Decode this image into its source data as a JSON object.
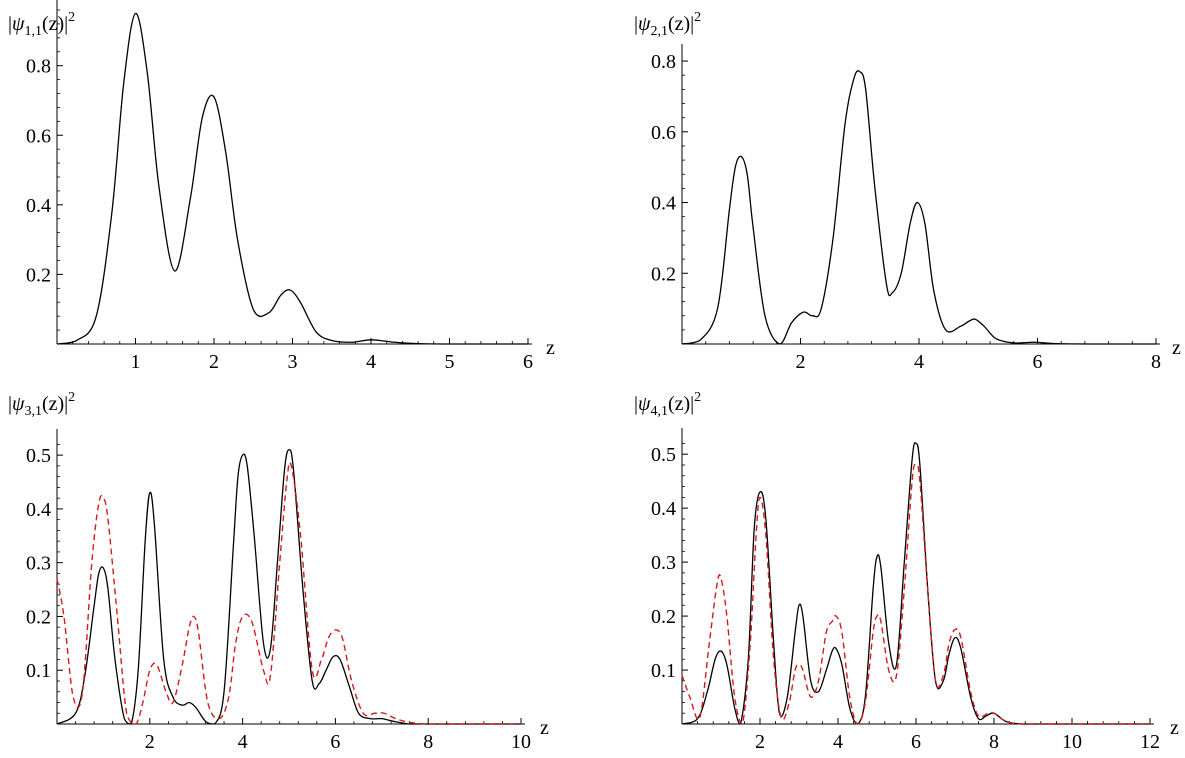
{
  "chart_data": [
    {
      "type": "line",
      "ylabel": {
        "pre": "|",
        "sym": "ψ",
        "sub": "1,1",
        "mid": "(z)|",
        "sup": "2"
      },
      "xlabel": "z",
      "xlim": [
        0,
        6
      ],
      "ylim": [
        0,
        0.96
      ],
      "xticks": [
        1,
        2,
        3,
        4,
        5,
        6
      ],
      "yticks": [
        0.2,
        0.4,
        0.6,
        0.8
      ],
      "ytick_labels": [
        "0.2",
        "0.4",
        "0.6",
        "0.8"
      ],
      "series": [
        {
          "style": "solid",
          "color": "#000000",
          "x": [
            0,
            0.25,
            0.5,
            0.7,
            0.85,
            1.0,
            1.15,
            1.3,
            1.5,
            1.7,
            1.85,
            2.0,
            2.15,
            2.3,
            2.5,
            2.7,
            2.85,
            2.97,
            3.1,
            3.3,
            3.5,
            3.75,
            4.0,
            4.3,
            4.6,
            5.0,
            5.5,
            6.0
          ],
          "y": [
            0.0,
            0.01,
            0.08,
            0.38,
            0.75,
            0.95,
            0.78,
            0.45,
            0.21,
            0.42,
            0.65,
            0.71,
            0.55,
            0.3,
            0.1,
            0.09,
            0.14,
            0.155,
            0.12,
            0.035,
            0.01,
            0.005,
            0.012,
            0.005,
            0.001,
            0.0,
            0.0,
            0.0
          ]
        }
      ]
    },
    {
      "type": "line",
      "ylabel": {
        "pre": "|",
        "sym": "ψ",
        "sub": "2,1",
        "mid": "(z)|",
        "sup": "2"
      },
      "xlabel": "z",
      "xlim": [
        0,
        8
      ],
      "ylim": [
        0,
        0.82
      ],
      "xticks": [
        2,
        4,
        6,
        8
      ],
      "yticks": [
        0.2,
        0.4,
        0.6,
        0.8
      ],
      "ytick_labels": [
        "0.2",
        "0.4",
        "0.6",
        "0.8"
      ],
      "series": [
        {
          "style": "solid",
          "color": "#000000",
          "x": [
            0,
            0.3,
            0.6,
            0.8,
            0.9,
            1.0,
            1.1,
            1.2,
            1.4,
            1.65,
            1.85,
            2.05,
            2.2,
            2.35,
            2.55,
            2.75,
            2.9,
            3.0,
            3.1,
            3.25,
            3.45,
            3.55,
            3.7,
            3.85,
            3.97,
            4.1,
            4.25,
            4.45,
            4.7,
            4.85,
            4.95,
            5.1,
            5.3,
            5.6,
            5.95,
            6.3,
            7.0,
            8.0
          ],
          "y": [
            0.0,
            0.01,
            0.1,
            0.38,
            0.5,
            0.53,
            0.48,
            0.33,
            0.08,
            0.0,
            0.06,
            0.09,
            0.08,
            0.1,
            0.3,
            0.62,
            0.75,
            0.77,
            0.72,
            0.45,
            0.17,
            0.145,
            0.2,
            0.34,
            0.4,
            0.34,
            0.15,
            0.04,
            0.05,
            0.065,
            0.07,
            0.05,
            0.015,
            0.003,
            0.005,
            0.001,
            0.0,
            0.0
          ]
        }
      ]
    },
    {
      "type": "line",
      "ylabel": {
        "pre": "|",
        "sym": "ψ",
        "sub": "3,1",
        "mid": "(z)|",
        "sup": "2"
      },
      "xlabel": "z",
      "xlim": [
        0,
        10
      ],
      "ylim": [
        0,
        0.53
      ],
      "xticks": [
        2,
        4,
        6,
        8,
        10
      ],
      "yticks": [
        0.1,
        0.2,
        0.3,
        0.4,
        0.5
      ],
      "ytick_labels": [
        "0.1",
        "0.2",
        "0.3",
        "0.4",
        "0.5"
      ],
      "series": [
        {
          "style": "solid",
          "color": "#000000",
          "x": [
            0,
            0.4,
            0.6,
            0.8,
            0.9,
            1.0,
            1.1,
            1.25,
            1.45,
            1.6,
            1.75,
            1.9,
            2.0,
            2.1,
            2.3,
            2.5,
            2.7,
            2.85,
            3.0,
            3.2,
            3.4,
            3.6,
            3.8,
            3.9,
            4.0,
            4.1,
            4.25,
            4.45,
            4.6,
            4.75,
            4.9,
            5.0,
            5.1,
            5.3,
            5.5,
            5.65,
            5.8,
            5.95,
            6.1,
            6.3,
            6.5,
            6.75,
            7.0,
            7.25,
            7.6,
            8.0,
            9.0,
            10.0
          ],
          "y": [
            0.0,
            0.02,
            0.09,
            0.22,
            0.28,
            0.29,
            0.25,
            0.12,
            0.01,
            0.0,
            0.1,
            0.34,
            0.43,
            0.37,
            0.12,
            0.05,
            0.035,
            0.04,
            0.03,
            0.005,
            0.0,
            0.06,
            0.33,
            0.46,
            0.5,
            0.48,
            0.35,
            0.15,
            0.14,
            0.3,
            0.47,
            0.51,
            0.47,
            0.25,
            0.08,
            0.075,
            0.1,
            0.125,
            0.12,
            0.07,
            0.02,
            0.01,
            0.01,
            0.005,
            0.0,
            0.0,
            0.0,
            0.0
          ]
        },
        {
          "style": "dashed",
          "color": "#d61a1a",
          "x": [
            0,
            0.15,
            0.35,
            0.55,
            0.75,
            0.9,
            1.0,
            1.1,
            1.3,
            1.5,
            1.7,
            1.85,
            2.0,
            2.15,
            2.35,
            2.5,
            2.7,
            2.85,
            2.95,
            3.05,
            3.25,
            3.5,
            3.7,
            3.85,
            4.0,
            4.2,
            4.45,
            4.6,
            4.8,
            4.95,
            5.05,
            5.25,
            5.5,
            5.7,
            5.85,
            6.0,
            6.15,
            6.35,
            6.6,
            6.85,
            7.05,
            7.3,
            7.6,
            8.0,
            9.0,
            10.0
          ],
          "y": [
            0.27,
            0.2,
            0.05,
            0.06,
            0.3,
            0.41,
            0.42,
            0.38,
            0.2,
            0.02,
            0.0,
            0.04,
            0.1,
            0.11,
            0.06,
            0.04,
            0.11,
            0.18,
            0.2,
            0.17,
            0.04,
            0.01,
            0.05,
            0.15,
            0.2,
            0.19,
            0.1,
            0.09,
            0.3,
            0.45,
            0.48,
            0.35,
            0.1,
            0.12,
            0.16,
            0.175,
            0.16,
            0.08,
            0.02,
            0.02,
            0.02,
            0.01,
            0.003,
            0.0,
            0.0,
            0.0
          ]
        }
      ]
    },
    {
      "type": "line",
      "ylabel": {
        "pre": "|",
        "sym": "ψ",
        "sub": "4,1",
        "mid": "(z)|",
        "sup": "2"
      },
      "xlabel": "z",
      "xlim": [
        0,
        12
      ],
      "ylim": [
        0,
        0.53
      ],
      "xticks": [
        2,
        4,
        6,
        8,
        10,
        12
      ],
      "yticks": [
        0.1,
        0.2,
        0.3,
        0.4,
        0.5
      ],
      "ytick_labels": [
        "0.1",
        "0.2",
        "0.3",
        "0.4",
        "0.5"
      ],
      "series": [
        {
          "style": "solid",
          "color": "#000000",
          "x": [
            0,
            0.4,
            0.65,
            0.85,
            1.0,
            1.15,
            1.35,
            1.5,
            1.7,
            1.85,
            2.0,
            2.15,
            2.35,
            2.5,
            2.7,
            2.9,
            3.0,
            3.1,
            3.3,
            3.5,
            3.7,
            3.85,
            3.95,
            4.1,
            4.3,
            4.5,
            4.7,
            4.9,
            5.0,
            5.1,
            5.3,
            5.5,
            5.7,
            5.9,
            6.0,
            6.1,
            6.3,
            6.5,
            6.7,
            6.85,
            7.0,
            7.15,
            7.4,
            7.6,
            7.8,
            8.0,
            8.3,
            8.7,
            9.5,
            12.0
          ],
          "y": [
            0.0,
            0.01,
            0.06,
            0.12,
            0.135,
            0.11,
            0.03,
            0.0,
            0.12,
            0.36,
            0.43,
            0.38,
            0.15,
            0.02,
            0.05,
            0.17,
            0.22,
            0.2,
            0.08,
            0.06,
            0.1,
            0.135,
            0.14,
            0.11,
            0.03,
            0.0,
            0.05,
            0.25,
            0.31,
            0.29,
            0.15,
            0.11,
            0.3,
            0.49,
            0.52,
            0.48,
            0.25,
            0.08,
            0.08,
            0.13,
            0.16,
            0.14,
            0.05,
            0.01,
            0.015,
            0.02,
            0.005,
            0.0,
            0.0,
            0.0
          ]
        },
        {
          "style": "dashed",
          "color": "#d61a1a",
          "x": [
            0,
            0.2,
            0.45,
            0.7,
            0.9,
            1.0,
            1.15,
            1.35,
            1.55,
            1.75,
            1.9,
            2.0,
            2.15,
            2.35,
            2.55,
            2.75,
            2.9,
            3.0,
            3.1,
            3.3,
            3.5,
            3.7,
            3.85,
            3.95,
            4.1,
            4.3,
            4.5,
            4.7,
            4.9,
            5.0,
            5.1,
            5.3,
            5.5,
            5.7,
            5.9,
            6.0,
            6.1,
            6.3,
            6.5,
            6.7,
            6.85,
            7.0,
            7.15,
            7.4,
            7.6,
            7.85,
            8.0,
            8.3,
            8.7,
            9.5,
            12.0
          ],
          "y": [
            0.09,
            0.05,
            0.01,
            0.15,
            0.26,
            0.27,
            0.2,
            0.05,
            0.0,
            0.15,
            0.35,
            0.42,
            0.35,
            0.12,
            0.01,
            0.04,
            0.1,
            0.11,
            0.1,
            0.05,
            0.08,
            0.17,
            0.19,
            0.2,
            0.17,
            0.05,
            0.0,
            0.04,
            0.17,
            0.2,
            0.19,
            0.1,
            0.09,
            0.25,
            0.45,
            0.48,
            0.45,
            0.25,
            0.08,
            0.09,
            0.15,
            0.175,
            0.16,
            0.06,
            0.015,
            0.02,
            0.02,
            0.005,
            0.0,
            0.0,
            0.0
          ]
        }
      ]
    }
  ]
}
